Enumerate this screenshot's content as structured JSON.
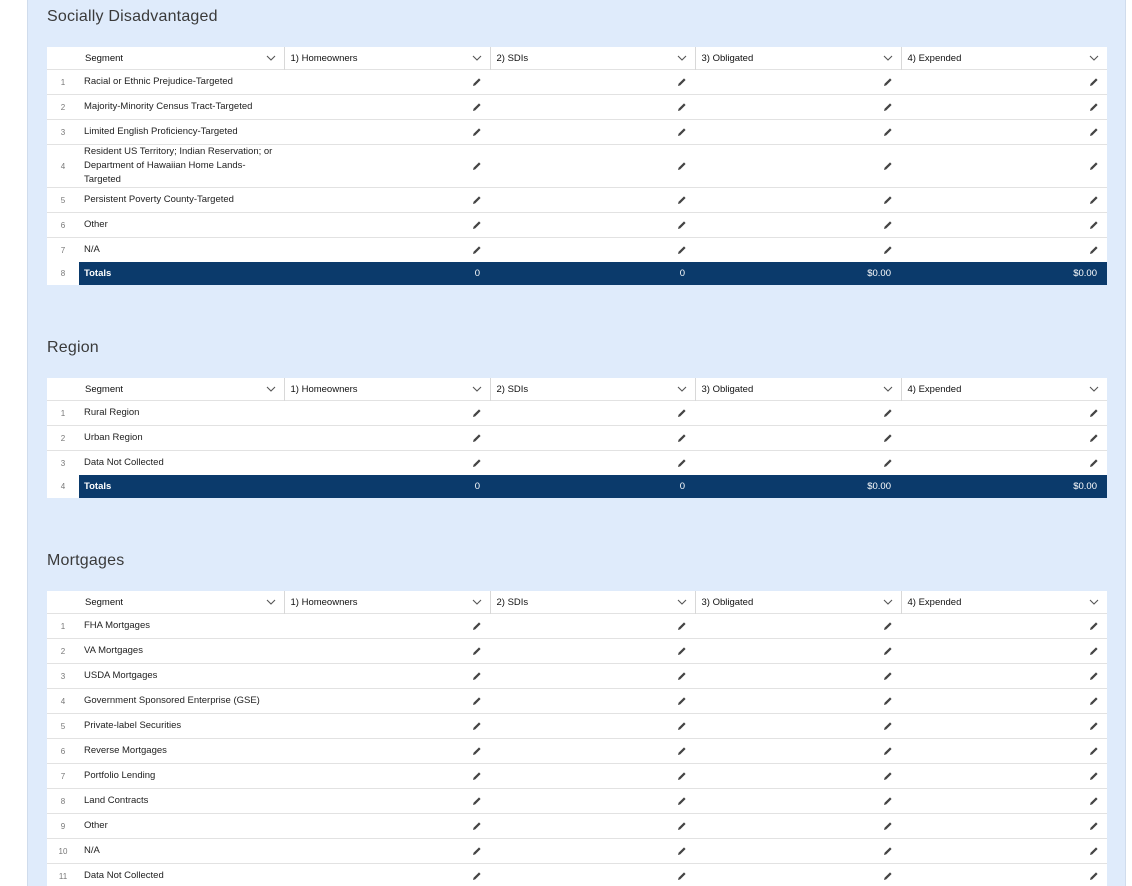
{
  "sections": [
    {
      "title": "Socially Disadvantaged",
      "columns": [
        "Segment",
        "1) Homeowners",
        "2) SDIs",
        "3) Obligated",
        "4) Expended"
      ],
      "rows": [
        {
          "number": "1",
          "segment": "Racial or Ethnic Prejudice-Targeted"
        },
        {
          "number": "2",
          "segment": "Majority-Minority Census Tract-Targeted"
        },
        {
          "number": "3",
          "segment": "Limited English Proficiency-Targeted"
        },
        {
          "number": "4",
          "segment": "Resident US Territory; Indian Reservation; or Department of Hawaiian Home Lands-Targeted"
        },
        {
          "number": "5",
          "segment": "Persistent Poverty County-Targeted"
        },
        {
          "number": "6",
          "segment": "Other"
        },
        {
          "number": "7",
          "segment": "N/A"
        }
      ],
      "totals": {
        "number": "8",
        "label": "Totals",
        "values": [
          "0",
          "0",
          "$0.00",
          "$0.00"
        ]
      }
    },
    {
      "title": "Region",
      "columns": [
        "Segment",
        "1) Homeowners",
        "2) SDIs",
        "3) Obligated",
        "4) Expended"
      ],
      "rows": [
        {
          "number": "1",
          "segment": "Rural Region"
        },
        {
          "number": "2",
          "segment": "Urban Region"
        },
        {
          "number": "3",
          "segment": "Data Not Collected"
        }
      ],
      "totals": {
        "number": "4",
        "label": "Totals",
        "values": [
          "0",
          "0",
          "$0.00",
          "$0.00"
        ]
      }
    },
    {
      "title": "Mortgages",
      "columns": [
        "Segment",
        "1) Homeowners",
        "2) SDIs",
        "3) Obligated",
        "4) Expended"
      ],
      "rows": [
        {
          "number": "1",
          "segment": "FHA Mortgages"
        },
        {
          "number": "2",
          "segment": "VA Mortgages"
        },
        {
          "number": "3",
          "segment": "USDA Mortgages"
        },
        {
          "number": "4",
          "segment": "Government Sponsored Enterprise (GSE)"
        },
        {
          "number": "5",
          "segment": "Private-label Securities"
        },
        {
          "number": "6",
          "segment": "Reverse Mortgages"
        },
        {
          "number": "7",
          "segment": "Portfolio Lending"
        },
        {
          "number": "8",
          "segment": "Land Contracts"
        },
        {
          "number": "9",
          "segment": "Other"
        },
        {
          "number": "10",
          "segment": "N/A"
        },
        {
          "number": "11",
          "segment": "Data Not Collected"
        }
      ]
    }
  ]
}
